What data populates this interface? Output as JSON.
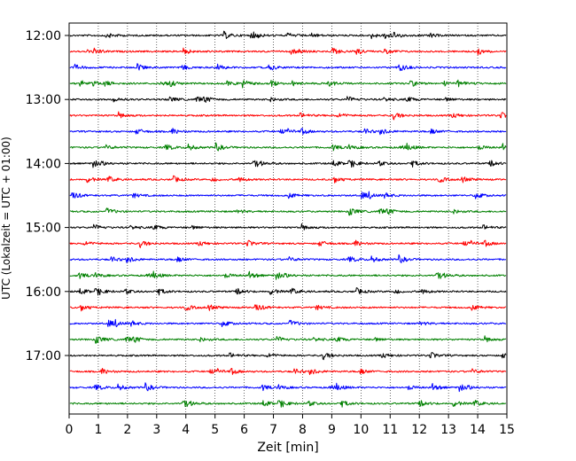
{
  "chart_data": {
    "type": "line",
    "title": "",
    "xlabel": "Zeit  [min]",
    "ylabel": "UTC (Lokalzeit = UTC + 01:00)",
    "xlim": [
      0,
      15
    ],
    "x_ticks": [
      "0",
      "1",
      "2",
      "3",
      "4",
      "5",
      "6",
      "7",
      "8",
      "9",
      "10",
      "11",
      "12",
      "13",
      "14",
      "15"
    ],
    "y_ticks": [
      "12:00",
      "13:00",
      "14:00",
      "15:00",
      "16:00",
      "17:00"
    ],
    "grid": "vertical-dotted",
    "legend": "none",
    "series_colors_cycle": [
      "#000000",
      "#ff0000",
      "#0000ff",
      "#008000"
    ],
    "series": [
      {
        "start": "12:00",
        "color": "#000000"
      },
      {
        "start": "12:15",
        "color": "#ff0000"
      },
      {
        "start": "12:30",
        "color": "#0000ff"
      },
      {
        "start": "12:45",
        "color": "#008000"
      },
      {
        "start": "13:00",
        "color": "#000000"
      },
      {
        "start": "13:15",
        "color": "#ff0000"
      },
      {
        "start": "13:30",
        "color": "#0000ff"
      },
      {
        "start": "13:45",
        "color": "#008000"
      },
      {
        "start": "14:00",
        "color": "#000000"
      },
      {
        "start": "14:15",
        "color": "#ff0000"
      },
      {
        "start": "14:30",
        "color": "#0000ff"
      },
      {
        "start": "14:45",
        "color": "#008000"
      },
      {
        "start": "15:00",
        "color": "#000000"
      },
      {
        "start": "15:15",
        "color": "#ff0000"
      },
      {
        "start": "15:30",
        "color": "#0000ff"
      },
      {
        "start": "15:45",
        "color": "#008000"
      },
      {
        "start": "16:00",
        "color": "#000000"
      },
      {
        "start": "16:15",
        "color": "#ff0000"
      },
      {
        "start": "16:30",
        "color": "#0000ff"
      },
      {
        "start": "16:45",
        "color": "#008000"
      },
      {
        "start": "17:00",
        "color": "#000000"
      },
      {
        "start": "17:15",
        "color": "#ff0000"
      },
      {
        "start": "17:30",
        "color": "#0000ff"
      },
      {
        "start": "17:45",
        "color": "#008000"
      }
    ]
  }
}
